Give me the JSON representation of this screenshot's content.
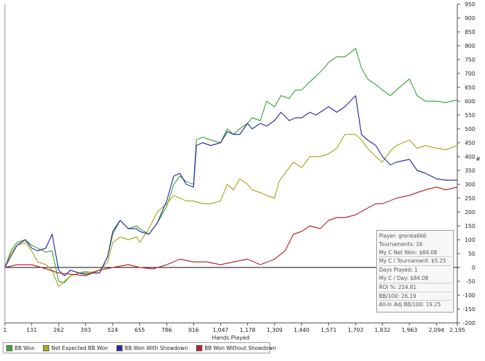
{
  "chart_data": {
    "type": "line",
    "xlabel": "Hands Played",
    "ylabel": "#",
    "xlim": [
      1,
      2195
    ],
    "ylim": [
      -200,
      950
    ],
    "x_ticks": [
      "1",
      "131",
      "262",
      "393",
      "524",
      "655",
      "786",
      "916",
      "1,047",
      "1,178",
      "1,309",
      "1,440",
      "1,571",
      "1,702",
      "1,832",
      "1,963",
      "2,094",
      "2,195"
    ],
    "y_ticks": [
      "950",
      "900",
      "850",
      "800",
      "750",
      "700",
      "650",
      "600",
      "550",
      "500",
      "450",
      "400",
      "350",
      "300",
      "250",
      "200",
      "150",
      "100",
      "50",
      "0",
      "-50",
      "-100",
      "-150",
      "-200"
    ],
    "series": [
      {
        "name": "BB Won",
        "color": "#3aa83a",
        "points": [
          [
            1,
            0
          ],
          [
            30,
            60
          ],
          [
            60,
            90
          ],
          [
            100,
            100
          ],
          [
            131,
            80
          ],
          [
            160,
            70
          ],
          [
            200,
            55
          ],
          [
            230,
            60
          ],
          [
            262,
            -50
          ],
          [
            290,
            -55
          ],
          [
            320,
            -30
          ],
          [
            360,
            -20
          ],
          [
            393,
            -15
          ],
          [
            430,
            -20
          ],
          [
            460,
            -20
          ],
          [
            500,
            40
          ],
          [
            524,
            120
          ],
          [
            560,
            170
          ],
          [
            600,
            140
          ],
          [
            640,
            150
          ],
          [
            655,
            140
          ],
          [
            700,
            120
          ],
          [
            740,
            160
          ],
          [
            786,
            220
          ],
          [
            820,
            300
          ],
          [
            850,
            330
          ],
          [
            880,
            310
          ],
          [
            916,
            300
          ],
          [
            930,
            460
          ],
          [
            960,
            470
          ],
          [
            1000,
            460
          ],
          [
            1047,
            450
          ],
          [
            1080,
            500
          ],
          [
            1110,
            480
          ],
          [
            1140,
            500
          ],
          [
            1178,
            520
          ],
          [
            1200,
            540
          ],
          [
            1240,
            530
          ],
          [
            1270,
            600
          ],
          [
            1309,
            580
          ],
          [
            1340,
            620
          ],
          [
            1380,
            610
          ],
          [
            1410,
            640
          ],
          [
            1440,
            640
          ],
          [
            1480,
            670
          ],
          [
            1510,
            690
          ],
          [
            1550,
            720
          ],
          [
            1571,
            740
          ],
          [
            1610,
            760
          ],
          [
            1650,
            760
          ],
          [
            1702,
            790
          ],
          [
            1730,
            720
          ],
          [
            1760,
            680
          ],
          [
            1800,
            660
          ],
          [
            1832,
            640
          ],
          [
            1870,
            620
          ],
          [
            1900,
            640
          ],
          [
            1963,
            680
          ],
          [
            2000,
            620
          ],
          [
            2040,
            600
          ],
          [
            2094,
            600
          ],
          [
            2140,
            595
          ],
          [
            2195,
            605
          ]
        ]
      },
      {
        "name": "Net Expected BB Won",
        "color": "#a8a821",
        "points": [
          [
            1,
            0
          ],
          [
            30,
            50
          ],
          [
            60,
            80
          ],
          [
            100,
            90
          ],
          [
            131,
            60
          ],
          [
            160,
            20
          ],
          [
            200,
            10
          ],
          [
            230,
            -10
          ],
          [
            262,
            -70
          ],
          [
            290,
            -50
          ],
          [
            320,
            -30
          ],
          [
            360,
            -20
          ],
          [
            393,
            -20
          ],
          [
            430,
            -15
          ],
          [
            460,
            -10
          ],
          [
            500,
            20
          ],
          [
            524,
            90
          ],
          [
            560,
            110
          ],
          [
            600,
            100
          ],
          [
            640,
            110
          ],
          [
            655,
            90
          ],
          [
            700,
            140
          ],
          [
            740,
            200
          ],
          [
            786,
            230
          ],
          [
            820,
            260
          ],
          [
            850,
            250
          ],
          [
            880,
            240
          ],
          [
            916,
            240
          ],
          [
            960,
            230
          ],
          [
            1000,
            230
          ],
          [
            1047,
            240
          ],
          [
            1080,
            300
          ],
          [
            1110,
            280
          ],
          [
            1140,
            320
          ],
          [
            1178,
            300
          ],
          [
            1200,
            280
          ],
          [
            1240,
            270
          ],
          [
            1270,
            260
          ],
          [
            1309,
            250
          ],
          [
            1330,
            310
          ],
          [
            1360,
            340
          ],
          [
            1400,
            380
          ],
          [
            1440,
            360
          ],
          [
            1480,
            400
          ],
          [
            1530,
            400
          ],
          [
            1571,
            410
          ],
          [
            1610,
            430
          ],
          [
            1650,
            480
          ],
          [
            1702,
            480
          ],
          [
            1730,
            460
          ],
          [
            1760,
            430
          ],
          [
            1800,
            400
          ],
          [
            1832,
            380
          ],
          [
            1870,
            420
          ],
          [
            1900,
            440
          ],
          [
            1963,
            460
          ],
          [
            2000,
            430
          ],
          [
            2040,
            440
          ],
          [
            2094,
            430
          ],
          [
            2140,
            425
          ],
          [
            2195,
            440
          ]
        ]
      },
      {
        "name": "BB Won With Showdown",
        "color": "#2a2aa0",
        "points": [
          [
            1,
            0
          ],
          [
            30,
            40
          ],
          [
            60,
            80
          ],
          [
            100,
            100
          ],
          [
            131,
            70
          ],
          [
            160,
            60
          ],
          [
            200,
            70
          ],
          [
            230,
            120
          ],
          [
            262,
            -10
          ],
          [
            290,
            -30
          ],
          [
            320,
            -10
          ],
          [
            360,
            -20
          ],
          [
            393,
            -25
          ],
          [
            430,
            -20
          ],
          [
            460,
            -20
          ],
          [
            500,
            40
          ],
          [
            524,
            130
          ],
          [
            560,
            170
          ],
          [
            600,
            140
          ],
          [
            640,
            140
          ],
          [
            655,
            130
          ],
          [
            700,
            120
          ],
          [
            740,
            160
          ],
          [
            786,
            240
          ],
          [
            820,
            330
          ],
          [
            850,
            340
          ],
          [
            880,
            300
          ],
          [
            916,
            290
          ],
          [
            930,
            440
          ],
          [
            960,
            450
          ],
          [
            1000,
            440
          ],
          [
            1047,
            450
          ],
          [
            1080,
            490
          ],
          [
            1110,
            480
          ],
          [
            1140,
            480
          ],
          [
            1178,
            520
          ],
          [
            1200,
            500
          ],
          [
            1240,
            520
          ],
          [
            1270,
            510
          ],
          [
            1309,
            530
          ],
          [
            1340,
            560
          ],
          [
            1380,
            530
          ],
          [
            1410,
            540
          ],
          [
            1440,
            540
          ],
          [
            1480,
            560
          ],
          [
            1510,
            550
          ],
          [
            1571,
            580
          ],
          [
            1610,
            560
          ],
          [
            1650,
            580
          ],
          [
            1702,
            620
          ],
          [
            1730,
            480
          ],
          [
            1760,
            460
          ],
          [
            1800,
            440
          ],
          [
            1832,
            400
          ],
          [
            1870,
            370
          ],
          [
            1900,
            380
          ],
          [
            1963,
            390
          ],
          [
            2000,
            350
          ],
          [
            2040,
            340
          ],
          [
            2094,
            320
          ],
          [
            2140,
            315
          ],
          [
            2195,
            315
          ]
        ]
      },
      {
        "name": "BB Won Without Showdown",
        "color": "#b52525",
        "points": [
          [
            1,
            0
          ],
          [
            60,
            10
          ],
          [
            131,
            10
          ],
          [
            200,
            -5
          ],
          [
            262,
            -20
          ],
          [
            330,
            -25
          ],
          [
            393,
            -30
          ],
          [
            460,
            -10
          ],
          [
            524,
            0
          ],
          [
            600,
            10
          ],
          [
            655,
            0
          ],
          [
            720,
            -5
          ],
          [
            786,
            10
          ],
          [
            850,
            30
          ],
          [
            916,
            20
          ],
          [
            980,
            20
          ],
          [
            1047,
            10
          ],
          [
            1110,
            20
          ],
          [
            1178,
            30
          ],
          [
            1240,
            10
          ],
          [
            1309,
            30
          ],
          [
            1360,
            60
          ],
          [
            1400,
            120
          ],
          [
            1440,
            130
          ],
          [
            1480,
            150
          ],
          [
            1530,
            140
          ],
          [
            1571,
            170
          ],
          [
            1610,
            180
          ],
          [
            1650,
            180
          ],
          [
            1702,
            190
          ],
          [
            1750,
            210
          ],
          [
            1800,
            230
          ],
          [
            1832,
            230
          ],
          [
            1900,
            250
          ],
          [
            1963,
            260
          ],
          [
            2000,
            270
          ],
          [
            2040,
            280
          ],
          [
            2094,
            290
          ],
          [
            2140,
            280
          ],
          [
            2195,
            290
          ]
        ]
      }
    ]
  },
  "stats": {
    "player": "Player: grenka666",
    "tournaments": "Tournaments: 16",
    "net_won": "My C Net Won: $84.08",
    "per_tournament": "My C / Tournament: $5.25",
    "days_played": "Days Played: 1",
    "per_day": "My C / Day: $84.08",
    "roi": "ROI %: 224.81",
    "bb100": "BB/100: 26.19",
    "allin_bb100": "All-In Adj BB/100: 19.25"
  },
  "legend": {
    "items": [
      {
        "label": "BB Won",
        "color": "#3aa83a"
      },
      {
        "label": "Net Expected BB Won",
        "color": "#a8a821"
      },
      {
        "label": "BB Won With Showdown",
        "color": "#2a2aa0"
      },
      {
        "label": "BB Won Without Showdown",
        "color": "#b52525"
      }
    ]
  }
}
